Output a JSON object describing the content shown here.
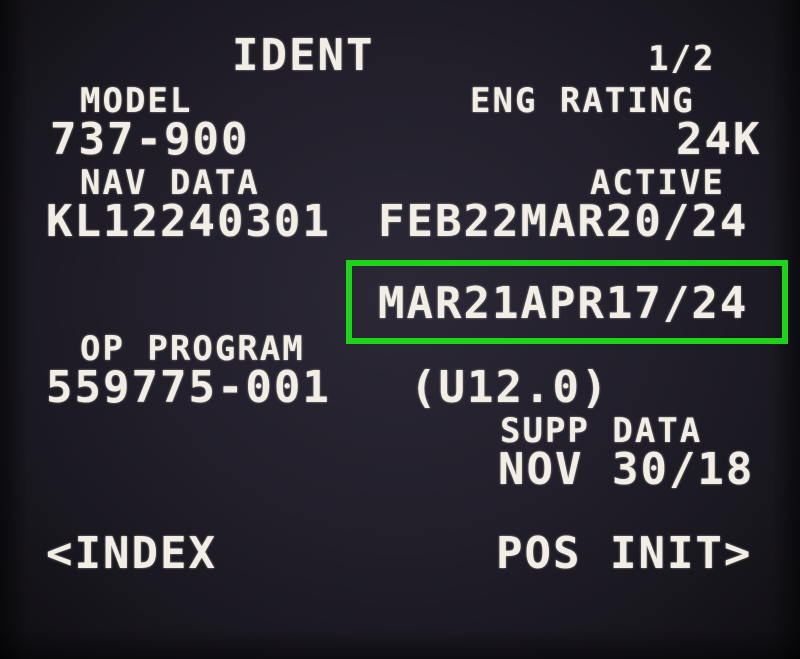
{
  "page": {
    "title": "IDENT",
    "page_number": "1/2"
  },
  "model": {
    "label": "MODEL",
    "value": "737-900"
  },
  "eng_rating": {
    "label": "ENG RATING",
    "value": "24K"
  },
  "nav_data": {
    "label": "NAV DATA",
    "value": "KL12240301"
  },
  "active": {
    "label": "ACTIVE",
    "current": "FEB22MAR20/24",
    "next": "MAR21APR17/24"
  },
  "op_program": {
    "label": "OP PROGRAM",
    "part_number": "559775-001",
    "version": "(U12.0)"
  },
  "supp_data": {
    "label": "SUPP DATA",
    "value": "NOV 30/18"
  },
  "line_select": {
    "left_6": "<INDEX",
    "right_6": "POS INIT>"
  },
  "colors": {
    "screen_background": "#221f2b",
    "text": "#f2eee6",
    "highlight": "#1fd21a"
  }
}
